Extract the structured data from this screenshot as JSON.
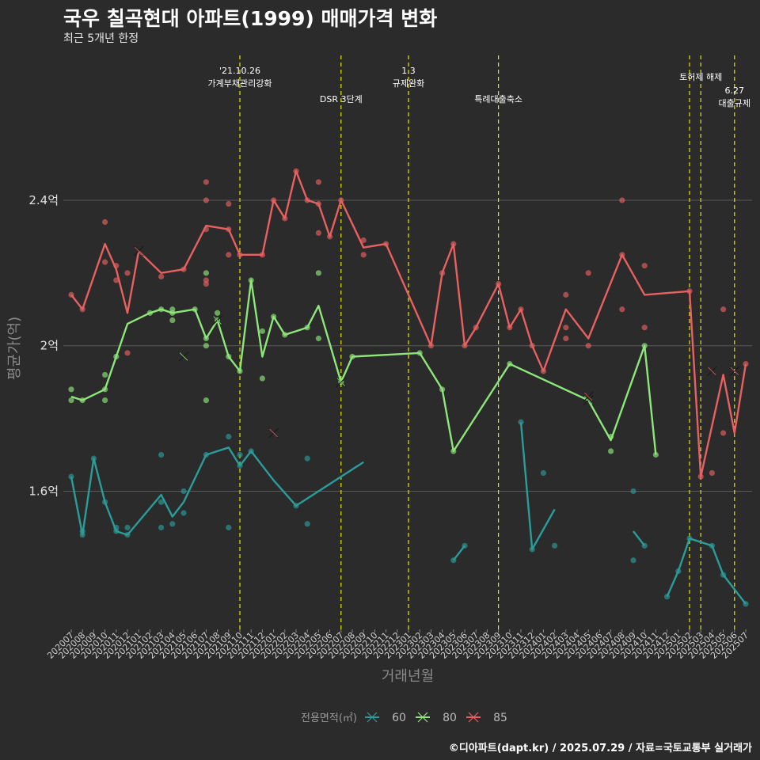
{
  "header": {
    "title": "국우 칠곡현대 아파트(1999) 매매가격 변화",
    "subtitle": "최근 5개년 한정"
  },
  "footer": {
    "caption": "©디아파트(dapt.kr) / 2025.07.29 / 자료=국토교통부 실거래가"
  },
  "colors": {
    "s60": "#2a9d9a",
    "s80": "#8ee67a",
    "s85": "#e86060",
    "event": "#e6e600",
    "grid": "#5a5a5a",
    "background": "#2b2b2b"
  },
  "chart_data": {
    "type": "line",
    "xlabel": "거래년월",
    "ylabel": "평균가(억)",
    "ylim": [
      1.22,
      2.82
    ],
    "yticks": [
      {
        "v": 1.6,
        "label": "1.6억"
      },
      {
        "v": 2.0,
        "label": "2억"
      },
      {
        "v": 2.4,
        "label": "2.4억"
      }
    ],
    "grid": true,
    "legend_title": "전용면적(㎡)",
    "legend_position": "bottom",
    "x": [
      "202007",
      "202008",
      "202009",
      "202010",
      "202011",
      "202012",
      "202101",
      "202102",
      "202103",
      "202104",
      "202105",
      "202106",
      "202107",
      "202108",
      "202109",
      "202110",
      "202111",
      "202112",
      "202201",
      "202202",
      "202203",
      "202204",
      "202205",
      "202206",
      "202207",
      "202208",
      "202209",
      "202210",
      "202211",
      "202212",
      "202301",
      "202302",
      "202303",
      "202304",
      "202305",
      "202306",
      "202307",
      "202308",
      "202309",
      "202310",
      "202311",
      "202312",
      "202401",
      "202402",
      "202403",
      "202404",
      "202405",
      "202406",
      "202407",
      "202408",
      "202409",
      "202410",
      "202411",
      "202412",
      "202501",
      "202502",
      "202503",
      "202504",
      "202505",
      "202506",
      "202507"
    ],
    "events": [
      {
        "x": "202110",
        "lines": [
          "'21.10.26",
          "가계부채관리강화"
        ],
        "level": 0
      },
      {
        "x": "202207",
        "lines": [
          "DSR 3단계"
        ],
        "level": 2
      },
      {
        "x": "202301",
        "lines": [
          "1.3",
          "규제완화"
        ],
        "level": 0
      },
      {
        "x": "202309",
        "lines": [
          "특례대출축소"
        ],
        "level": 2
      },
      {
        "x": "202502",
        "lines": [],
        "level": 0
      },
      {
        "x": "202503",
        "lines": [
          "토허제 해제"
        ],
        "level": 1
      },
      {
        "x": "202506",
        "lines": [
          "6.27",
          "대출규제"
        ],
        "level": 3
      }
    ],
    "series": [
      {
        "name": "60",
        "colorKey": "s60",
        "segments": [
          [
            [
              "202007",
              1.64
            ],
            [
              "202008",
              1.48
            ],
            [
              "202009",
              1.69
            ],
            [
              "202010",
              1.57
            ],
            [
              "202011",
              1.49
            ],
            [
              "202012",
              1.48
            ],
            [
              "202103",
              1.59
            ],
            [
              "202104",
              1.53
            ],
            [
              "202105",
              1.57
            ],
            [
              "202107",
              1.7
            ],
            [
              "202109",
              1.72
            ],
            [
              "202110",
              1.67
            ],
            [
              "202111",
              1.71
            ],
            [
              "202201",
              1.63
            ],
            [
              "202203",
              1.56
            ],
            [
              "202209",
              1.68
            ]
          ],
          [
            [
              "202305",
              1.41
            ],
            [
              "202306",
              1.45
            ]
          ],
          [
            [
              "202311",
              1.79
            ],
            [
              "202312",
              1.44
            ],
            [
              "202402",
              1.55
            ]
          ],
          [
            [
              "202409",
              1.49
            ],
            [
              "202410",
              1.45
            ]
          ],
          [
            [
              "202412",
              1.31
            ],
            [
              "202501",
              1.38
            ],
            [
              "202502",
              1.47
            ],
            [
              "202504",
              1.45
            ],
            [
              "202505",
              1.37
            ],
            [
              "202507",
              1.29
            ]
          ]
        ],
        "points": [
          [
            "202007",
            1.64
          ],
          [
            "202008",
            1.48
          ],
          [
            "202008",
            1.49
          ],
          [
            "202009",
            1.69
          ],
          [
            "202010",
            1.57
          ],
          [
            "202011",
            1.49
          ],
          [
            "202011",
            1.5
          ],
          [
            "202012",
            1.48
          ],
          [
            "202012",
            1.5
          ],
          [
            "202103",
            1.7
          ],
          [
            "202103",
            1.5
          ],
          [
            "202103",
            1.57
          ],
          [
            "202104",
            1.51
          ],
          [
            "202105",
            1.54
          ],
          [
            "202105",
            1.6
          ],
          [
            "202107",
            1.7
          ],
          [
            "202109",
            1.5
          ],
          [
            "202109",
            1.75
          ],
          [
            "202110",
            1.67
          ],
          [
            "202110",
            1.7
          ],
          [
            "202111",
            1.71
          ],
          [
            "202203",
            1.56
          ],
          [
            "202204",
            1.69
          ],
          [
            "202204",
            1.51
          ],
          [
            "202305",
            1.41
          ],
          [
            "202306",
            1.45
          ],
          [
            "202311",
            1.79
          ],
          [
            "202312",
            1.44
          ],
          [
            "202401",
            1.65
          ],
          [
            "202402",
            1.45
          ],
          [
            "202409",
            1.6
          ],
          [
            "202409",
            1.41
          ],
          [
            "202410",
            1.45
          ],
          [
            "202412",
            1.31
          ],
          [
            "202501",
            1.38
          ],
          [
            "202502",
            1.47
          ],
          [
            "202504",
            1.45
          ],
          [
            "202505",
            1.37
          ],
          [
            "202507",
            1.29
          ]
        ],
        "crosses": []
      },
      {
        "name": "80",
        "colorKey": "s80",
        "segments": [
          [
            [
              "202007",
              1.86
            ],
            [
              "202008",
              1.85
            ],
            [
              "202010",
              1.88
            ],
            [
              "202011",
              1.97
            ],
            [
              "202012",
              2.06
            ],
            [
              "202102",
              2.09
            ],
            [
              "202103",
              2.1
            ],
            [
              "202104",
              2.09
            ],
            [
              "202106",
              2.1
            ],
            [
              "202107",
              2.02
            ],
            [
              "202108",
              2.07
            ],
            [
              "202109",
              1.97
            ],
            [
              "202110",
              1.93
            ],
            [
              "202111",
              2.18
            ],
            [
              "202112",
              1.97
            ],
            [
              "202201",
              2.08
            ],
            [
              "202202",
              2.03
            ],
            [
              "202204",
              2.05
            ],
            [
              "202205",
              2.11
            ],
            [
              "202207",
              1.9
            ],
            [
              "202208",
              1.97
            ],
            [
              "202302",
              1.98
            ],
            [
              "202304",
              1.88
            ],
            [
              "202305",
              1.71
            ],
            [
              "202310",
              1.95
            ],
            [
              "202405",
              1.85
            ],
            [
              "202407",
              1.74
            ],
            [
              "202410",
              2.0
            ],
            [
              "202411",
              1.7
            ]
          ]
        ],
        "points": [
          [
            "202007",
            1.88
          ],
          [
            "202007",
            1.85
          ],
          [
            "202008",
            1.85
          ],
          [
            "202010",
            1.88
          ],
          [
            "202010",
            1.92
          ],
          [
            "202010",
            1.85
          ],
          [
            "202011",
            1.97
          ],
          [
            "202102",
            2.09
          ],
          [
            "202103",
            2.1
          ],
          [
            "202104",
            2.07
          ],
          [
            "202104",
            2.1
          ],
          [
            "202104",
            2.09
          ],
          [
            "202106",
            2.1
          ],
          [
            "202107",
            2.2
          ],
          [
            "202107",
            2.0
          ],
          [
            "202107",
            2.02
          ],
          [
            "202107",
            1.85
          ],
          [
            "202108",
            2.07
          ],
          [
            "202108",
            2.09
          ],
          [
            "202109",
            1.97
          ],
          [
            "202110",
            1.93
          ],
          [
            "202111",
            2.18
          ],
          [
            "202112",
            2.04
          ],
          [
            "202112",
            1.91
          ],
          [
            "202201",
            2.08
          ],
          [
            "202202",
            2.03
          ],
          [
            "202204",
            2.05
          ],
          [
            "202205",
            2.02
          ],
          [
            "202205",
            2.2
          ],
          [
            "202207",
            1.9
          ],
          [
            "202208",
            1.97
          ],
          [
            "202302",
            1.98
          ],
          [
            "202304",
            1.88
          ],
          [
            "202305",
            1.71
          ],
          [
            "202310",
            1.95
          ],
          [
            "202407",
            1.75
          ],
          [
            "202407",
            1.71
          ],
          [
            "202410",
            2.0
          ],
          [
            "202411",
            1.7
          ]
        ],
        "crosses": [
          [
            "202105",
            1.97
          ],
          [
            "202108",
            2.07
          ],
          [
            "202207",
            1.9
          ],
          [
            "202405",
            1.85
          ]
        ]
      },
      {
        "name": "85",
        "colorKey": "s85",
        "segments": [
          [
            [
              "202007",
              2.14
            ],
            [
              "202008",
              2.1
            ],
            [
              "202010",
              2.28
            ],
            [
              "202011",
              2.21
            ],
            [
              "202012",
              2.09
            ],
            [
              "202101",
              2.26
            ],
            [
              "202103",
              2.2
            ],
            [
              "202105",
              2.21
            ],
            [
              "202107",
              2.33
            ],
            [
              "202109",
              2.32
            ],
            [
              "202110",
              2.25
            ],
            [
              "202112",
              2.25
            ],
            [
              "202201",
              2.4
            ],
            [
              "202202",
              2.35
            ],
            [
              "202203",
              2.48
            ],
            [
              "202204",
              2.4
            ],
            [
              "202205",
              2.39
            ],
            [
              "202206",
              2.3
            ],
            [
              "202207",
              2.4
            ],
            [
              "202209",
              2.27
            ],
            [
              "202211",
              2.28
            ],
            [
              "202303",
              2.0
            ],
            [
              "202304",
              2.2
            ],
            [
              "202305",
              2.28
            ],
            [
              "202306",
              2.0
            ],
            [
              "202307",
              2.05
            ],
            [
              "202309",
              2.17
            ],
            [
              "202310",
              2.05
            ],
            [
              "202311",
              2.1
            ],
            [
              "202312",
              2.0
            ],
            [
              "202401",
              1.93
            ],
            [
              "202403",
              2.1
            ],
            [
              "202405",
              2.02
            ],
            [
              "202408",
              2.25
            ],
            [
              "202410",
              2.14
            ],
            [
              "202502",
              2.15
            ],
            [
              "202503",
              1.64
            ],
            [
              "202505",
              1.92
            ],
            [
              "202506",
              1.76
            ],
            [
              "202507",
              1.95
            ]
          ]
        ],
        "points": [
          [
            "202007",
            2.14
          ],
          [
            "202008",
            2.1
          ],
          [
            "202010",
            2.34
          ],
          [
            "202010",
            2.23
          ],
          [
            "202011",
            2.18
          ],
          [
            "202011",
            2.22
          ],
          [
            "202012",
            2.2
          ],
          [
            "202012",
            1.98
          ],
          [
            "202103",
            2.19
          ],
          [
            "202105",
            2.21
          ],
          [
            "202107",
            2.45
          ],
          [
            "202107",
            2.4
          ],
          [
            "202107",
            2.32
          ],
          [
            "202107",
            2.18
          ],
          [
            "202107",
            2.17
          ],
          [
            "202109",
            2.39
          ],
          [
            "202109",
            2.32
          ],
          [
            "202109",
            2.25
          ],
          [
            "202110",
            2.25
          ],
          [
            "202112",
            2.25
          ],
          [
            "202201",
            2.4
          ],
          [
            "202202",
            2.35
          ],
          [
            "202203",
            2.48
          ],
          [
            "202204",
            2.4
          ],
          [
            "202205",
            2.45
          ],
          [
            "202205",
            2.31
          ],
          [
            "202205",
            2.39
          ],
          [
            "202206",
            2.3
          ],
          [
            "202207",
            2.4
          ],
          [
            "202209",
            2.29
          ],
          [
            "202209",
            2.25
          ],
          [
            "202211",
            2.28
          ],
          [
            "202303",
            2.0
          ],
          [
            "202304",
            2.2
          ],
          [
            "202305",
            2.28
          ],
          [
            "202306",
            2.0
          ],
          [
            "202307",
            2.05
          ],
          [
            "202309",
            2.17
          ],
          [
            "202310",
            2.05
          ],
          [
            "202311",
            2.1
          ],
          [
            "202312",
            2.0
          ],
          [
            "202401",
            1.93
          ],
          [
            "202403",
            2.14
          ],
          [
            "202403",
            2.05
          ],
          [
            "202403",
            2.02
          ],
          [
            "202405",
            2.2
          ],
          [
            "202405",
            2.0
          ],
          [
            "202408",
            2.4
          ],
          [
            "202408",
            2.1
          ],
          [
            "202408",
            2.25
          ],
          [
            "202410",
            2.22
          ],
          [
            "202410",
            2.05
          ],
          [
            "202502",
            2.15
          ],
          [
            "202503",
            1.64
          ],
          [
            "202504",
            1.65
          ],
          [
            "202505",
            1.76
          ],
          [
            "202505",
            2.1
          ],
          [
            "202507",
            1.95
          ]
        ],
        "crosses": [
          [
            "202101",
            2.26
          ],
          [
            "202201",
            1.76
          ],
          [
            "202405",
            1.86
          ],
          [
            "202504",
            1.93
          ],
          [
            "202506",
            1.93
          ]
        ]
      }
    ]
  }
}
